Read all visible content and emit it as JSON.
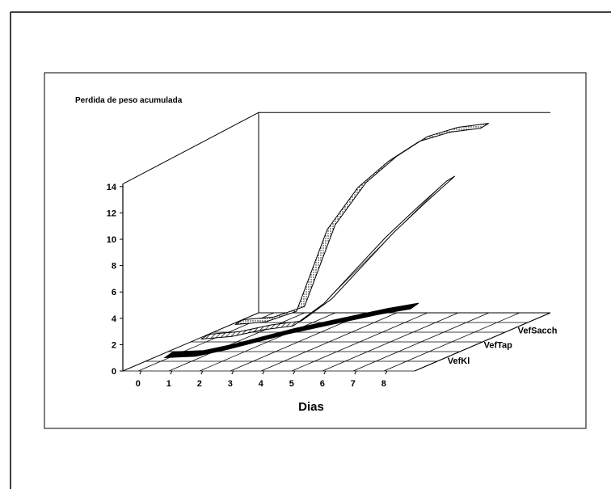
{
  "chart_data": {
    "type": "line",
    "title": "Perdida de peso acumulada",
    "xlabel": "Dias",
    "ylabel": "",
    "x": [
      0,
      1,
      2,
      3,
      4,
      5,
      6,
      7,
      8
    ],
    "y_ticks": [
      0,
      2,
      4,
      6,
      8,
      10,
      12,
      14
    ],
    "ylim": [
      0,
      14
    ],
    "series": [
      {
        "name": "VefSacch",
        "values": [
          0.4,
          0.6,
          1.4,
          7.6,
          10.8,
          12.8,
          14.3,
          15.0,
          15.3
        ],
        "style": "dotted-ribbon"
      },
      {
        "name": "VefTap",
        "values": [
          0.4,
          0.6,
          1.1,
          1.4,
          3.1,
          5.6,
          8.1,
          10.3,
          12.4
        ],
        "style": "hatched-ribbon"
      },
      {
        "name": "VefKl",
        "values": [
          0.2,
          0.3,
          0.8,
          1.4,
          2.0,
          2.5,
          3.0,
          3.5,
          3.9
        ],
        "style": "solid-ribbon"
      }
    ],
    "grid": true,
    "legend": "depth-axis-right"
  }
}
